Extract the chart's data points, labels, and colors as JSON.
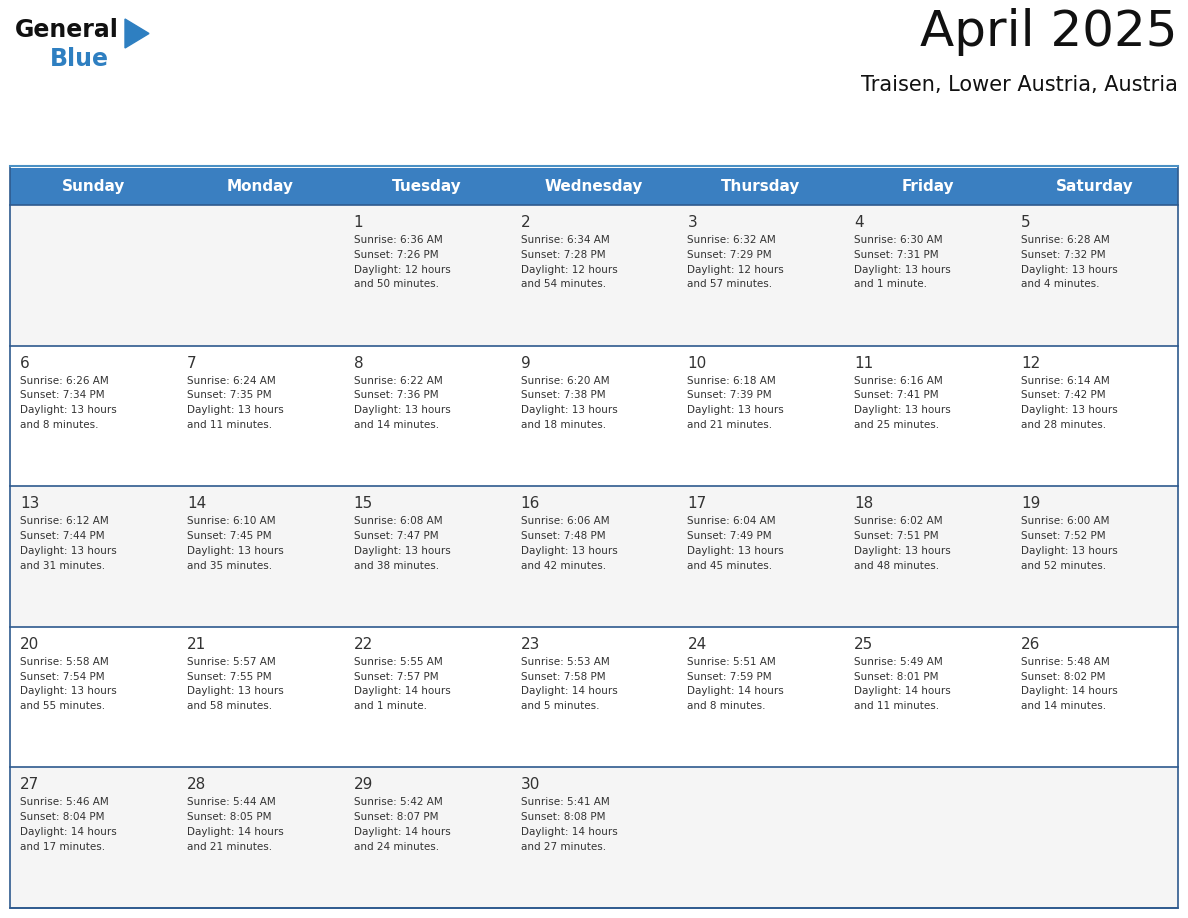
{
  "title": "April 2025",
  "subtitle": "Traisen, Lower Austria, Austria",
  "header_bg": "#3A7FC1",
  "header_text": "#FFFFFF",
  "row_bg_week1": "#F5F5F5",
  "row_bg_week2": "#FFFFFF",
  "row_bg_week3": "#F5F5F5",
  "row_bg_week4": "#FFFFFF",
  "row_bg_week5": "#F5F5F5",
  "separator_color": "#2E5A8E",
  "text_color": "#333333",
  "days_of_week": [
    "Sunday",
    "Monday",
    "Tuesday",
    "Wednesday",
    "Thursday",
    "Friday",
    "Saturday"
  ],
  "weeks": [
    [
      {
        "day": "",
        "info": ""
      },
      {
        "day": "",
        "info": ""
      },
      {
        "day": "1",
        "info": "Sunrise: 6:36 AM\nSunset: 7:26 PM\nDaylight: 12 hours\nand 50 minutes."
      },
      {
        "day": "2",
        "info": "Sunrise: 6:34 AM\nSunset: 7:28 PM\nDaylight: 12 hours\nand 54 minutes."
      },
      {
        "day": "3",
        "info": "Sunrise: 6:32 AM\nSunset: 7:29 PM\nDaylight: 12 hours\nand 57 minutes."
      },
      {
        "day": "4",
        "info": "Sunrise: 6:30 AM\nSunset: 7:31 PM\nDaylight: 13 hours\nand 1 minute."
      },
      {
        "day": "5",
        "info": "Sunrise: 6:28 AM\nSunset: 7:32 PM\nDaylight: 13 hours\nand 4 minutes."
      }
    ],
    [
      {
        "day": "6",
        "info": "Sunrise: 6:26 AM\nSunset: 7:34 PM\nDaylight: 13 hours\nand 8 minutes."
      },
      {
        "day": "7",
        "info": "Sunrise: 6:24 AM\nSunset: 7:35 PM\nDaylight: 13 hours\nand 11 minutes."
      },
      {
        "day": "8",
        "info": "Sunrise: 6:22 AM\nSunset: 7:36 PM\nDaylight: 13 hours\nand 14 minutes."
      },
      {
        "day": "9",
        "info": "Sunrise: 6:20 AM\nSunset: 7:38 PM\nDaylight: 13 hours\nand 18 minutes."
      },
      {
        "day": "10",
        "info": "Sunrise: 6:18 AM\nSunset: 7:39 PM\nDaylight: 13 hours\nand 21 minutes."
      },
      {
        "day": "11",
        "info": "Sunrise: 6:16 AM\nSunset: 7:41 PM\nDaylight: 13 hours\nand 25 minutes."
      },
      {
        "day": "12",
        "info": "Sunrise: 6:14 AM\nSunset: 7:42 PM\nDaylight: 13 hours\nand 28 minutes."
      }
    ],
    [
      {
        "day": "13",
        "info": "Sunrise: 6:12 AM\nSunset: 7:44 PM\nDaylight: 13 hours\nand 31 minutes."
      },
      {
        "day": "14",
        "info": "Sunrise: 6:10 AM\nSunset: 7:45 PM\nDaylight: 13 hours\nand 35 minutes."
      },
      {
        "day": "15",
        "info": "Sunrise: 6:08 AM\nSunset: 7:47 PM\nDaylight: 13 hours\nand 38 minutes."
      },
      {
        "day": "16",
        "info": "Sunrise: 6:06 AM\nSunset: 7:48 PM\nDaylight: 13 hours\nand 42 minutes."
      },
      {
        "day": "17",
        "info": "Sunrise: 6:04 AM\nSunset: 7:49 PM\nDaylight: 13 hours\nand 45 minutes."
      },
      {
        "day": "18",
        "info": "Sunrise: 6:02 AM\nSunset: 7:51 PM\nDaylight: 13 hours\nand 48 minutes."
      },
      {
        "day": "19",
        "info": "Sunrise: 6:00 AM\nSunset: 7:52 PM\nDaylight: 13 hours\nand 52 minutes."
      }
    ],
    [
      {
        "day": "20",
        "info": "Sunrise: 5:58 AM\nSunset: 7:54 PM\nDaylight: 13 hours\nand 55 minutes."
      },
      {
        "day": "21",
        "info": "Sunrise: 5:57 AM\nSunset: 7:55 PM\nDaylight: 13 hours\nand 58 minutes."
      },
      {
        "day": "22",
        "info": "Sunrise: 5:55 AM\nSunset: 7:57 PM\nDaylight: 14 hours\nand 1 minute."
      },
      {
        "day": "23",
        "info": "Sunrise: 5:53 AM\nSunset: 7:58 PM\nDaylight: 14 hours\nand 5 minutes."
      },
      {
        "day": "24",
        "info": "Sunrise: 5:51 AM\nSunset: 7:59 PM\nDaylight: 14 hours\nand 8 minutes."
      },
      {
        "day": "25",
        "info": "Sunrise: 5:49 AM\nSunset: 8:01 PM\nDaylight: 14 hours\nand 11 minutes."
      },
      {
        "day": "26",
        "info": "Sunrise: 5:48 AM\nSunset: 8:02 PM\nDaylight: 14 hours\nand 14 minutes."
      }
    ],
    [
      {
        "day": "27",
        "info": "Sunrise: 5:46 AM\nSunset: 8:04 PM\nDaylight: 14 hours\nand 17 minutes."
      },
      {
        "day": "28",
        "info": "Sunrise: 5:44 AM\nSunset: 8:05 PM\nDaylight: 14 hours\nand 21 minutes."
      },
      {
        "day": "29",
        "info": "Sunrise: 5:42 AM\nSunset: 8:07 PM\nDaylight: 14 hours\nand 24 minutes."
      },
      {
        "day": "30",
        "info": "Sunrise: 5:41 AM\nSunset: 8:08 PM\nDaylight: 14 hours\nand 27 minutes."
      },
      {
        "day": "",
        "info": ""
      },
      {
        "day": "",
        "info": ""
      },
      {
        "day": "",
        "info": ""
      }
    ]
  ],
  "row_bg_colors": [
    "#F5F5F5",
    "#FFFFFF",
    "#F5F5F5",
    "#FFFFFF",
    "#F5F5F5"
  ],
  "logo_color_general": "#111111",
  "logo_color_blue": "#2E7FC1",
  "logo_triangle_color": "#2E7FC1"
}
